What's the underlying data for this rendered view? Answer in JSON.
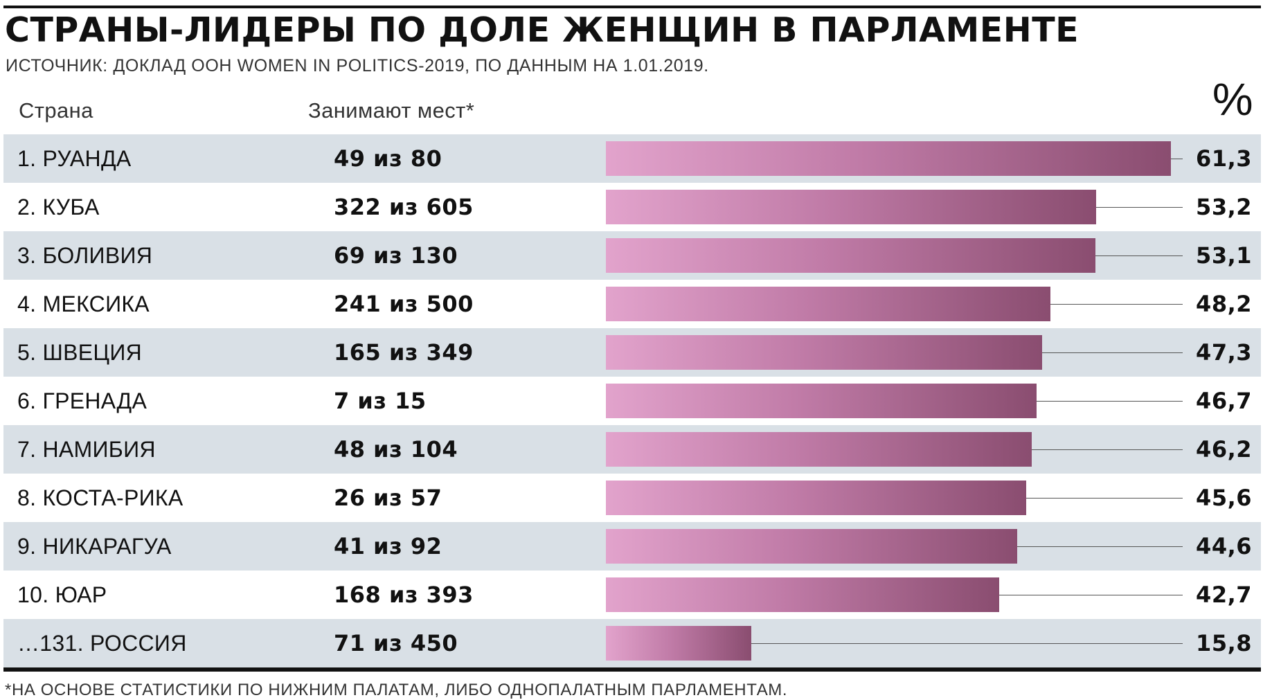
{
  "title": "СТРАНЫ-ЛИДЕРЫ ПО ДОЛЕ ЖЕНЩИН В ПАРЛАМЕНТЕ",
  "subtitle": "ИСТОЧНИК: ДОКЛАД ООН WOMEN IN POLITICS-2019, ПО ДАННЫМ НА 1.01.2019.",
  "headers": {
    "country": "Страна",
    "seats": "Занимают мест*",
    "percent": "%"
  },
  "footnote": "*НА ОСНОВЕ СТАТИСТИКИ ПО НИЖНИМ ПАЛАТАМ, ЛИБО ОДНОПАЛАТНЫМ ПАРЛАМЕНТАМ.",
  "colors": {
    "bar_start": "#e2a3cc",
    "bar_end": "#8a4d70",
    "row_shade": "#d9e0e6"
  },
  "chart_data": {
    "type": "bar",
    "orientation": "horizontal",
    "title": "СТРАНЫ-ЛИДЕРЫ ПО ДОЛЕ ЖЕНЩИН В ПАРЛАМЕНТЕ",
    "subtitle": "ИСТОЧНИК: ДОКЛАД ООН WOMEN IN POLITICS-2019, ПО ДАННЫМ НА 1.01.2019.",
    "categories": [
      "1. РУАНДА",
      "2. КУБА",
      "3. БОЛИВИЯ",
      "4. МЕКСИКА",
      "5. ШВЕЦИЯ",
      "6. ГРЕНАДА",
      "7. НАМИБИЯ",
      "8. КОСТА-РИКА",
      "9. НИКАРАГУА",
      "10. ЮАР",
      "…131. РОССИЯ"
    ],
    "seats": [
      "49 из 80",
      "322 из 605",
      "69 из 130",
      "241 из 500",
      "165 из 349",
      "7 из 15",
      "48 из 104",
      "26 из 57",
      "41 из 92",
      "168 из 393",
      "71 из 450"
    ],
    "values": [
      61.3,
      53.2,
      53.1,
      48.2,
      47.3,
      46.7,
      46.2,
      45.6,
      44.6,
      42.7,
      15.8
    ],
    "value_labels": [
      "61,3",
      "53,2",
      "53,1",
      "48,2",
      "47,3",
      "46,7",
      "46,2",
      "45,6",
      "44,6",
      "42,7",
      "15,8"
    ],
    "xlim": [
      0,
      61.3
    ],
    "ylabel": "%",
    "grid": false,
    "legend": "none"
  }
}
